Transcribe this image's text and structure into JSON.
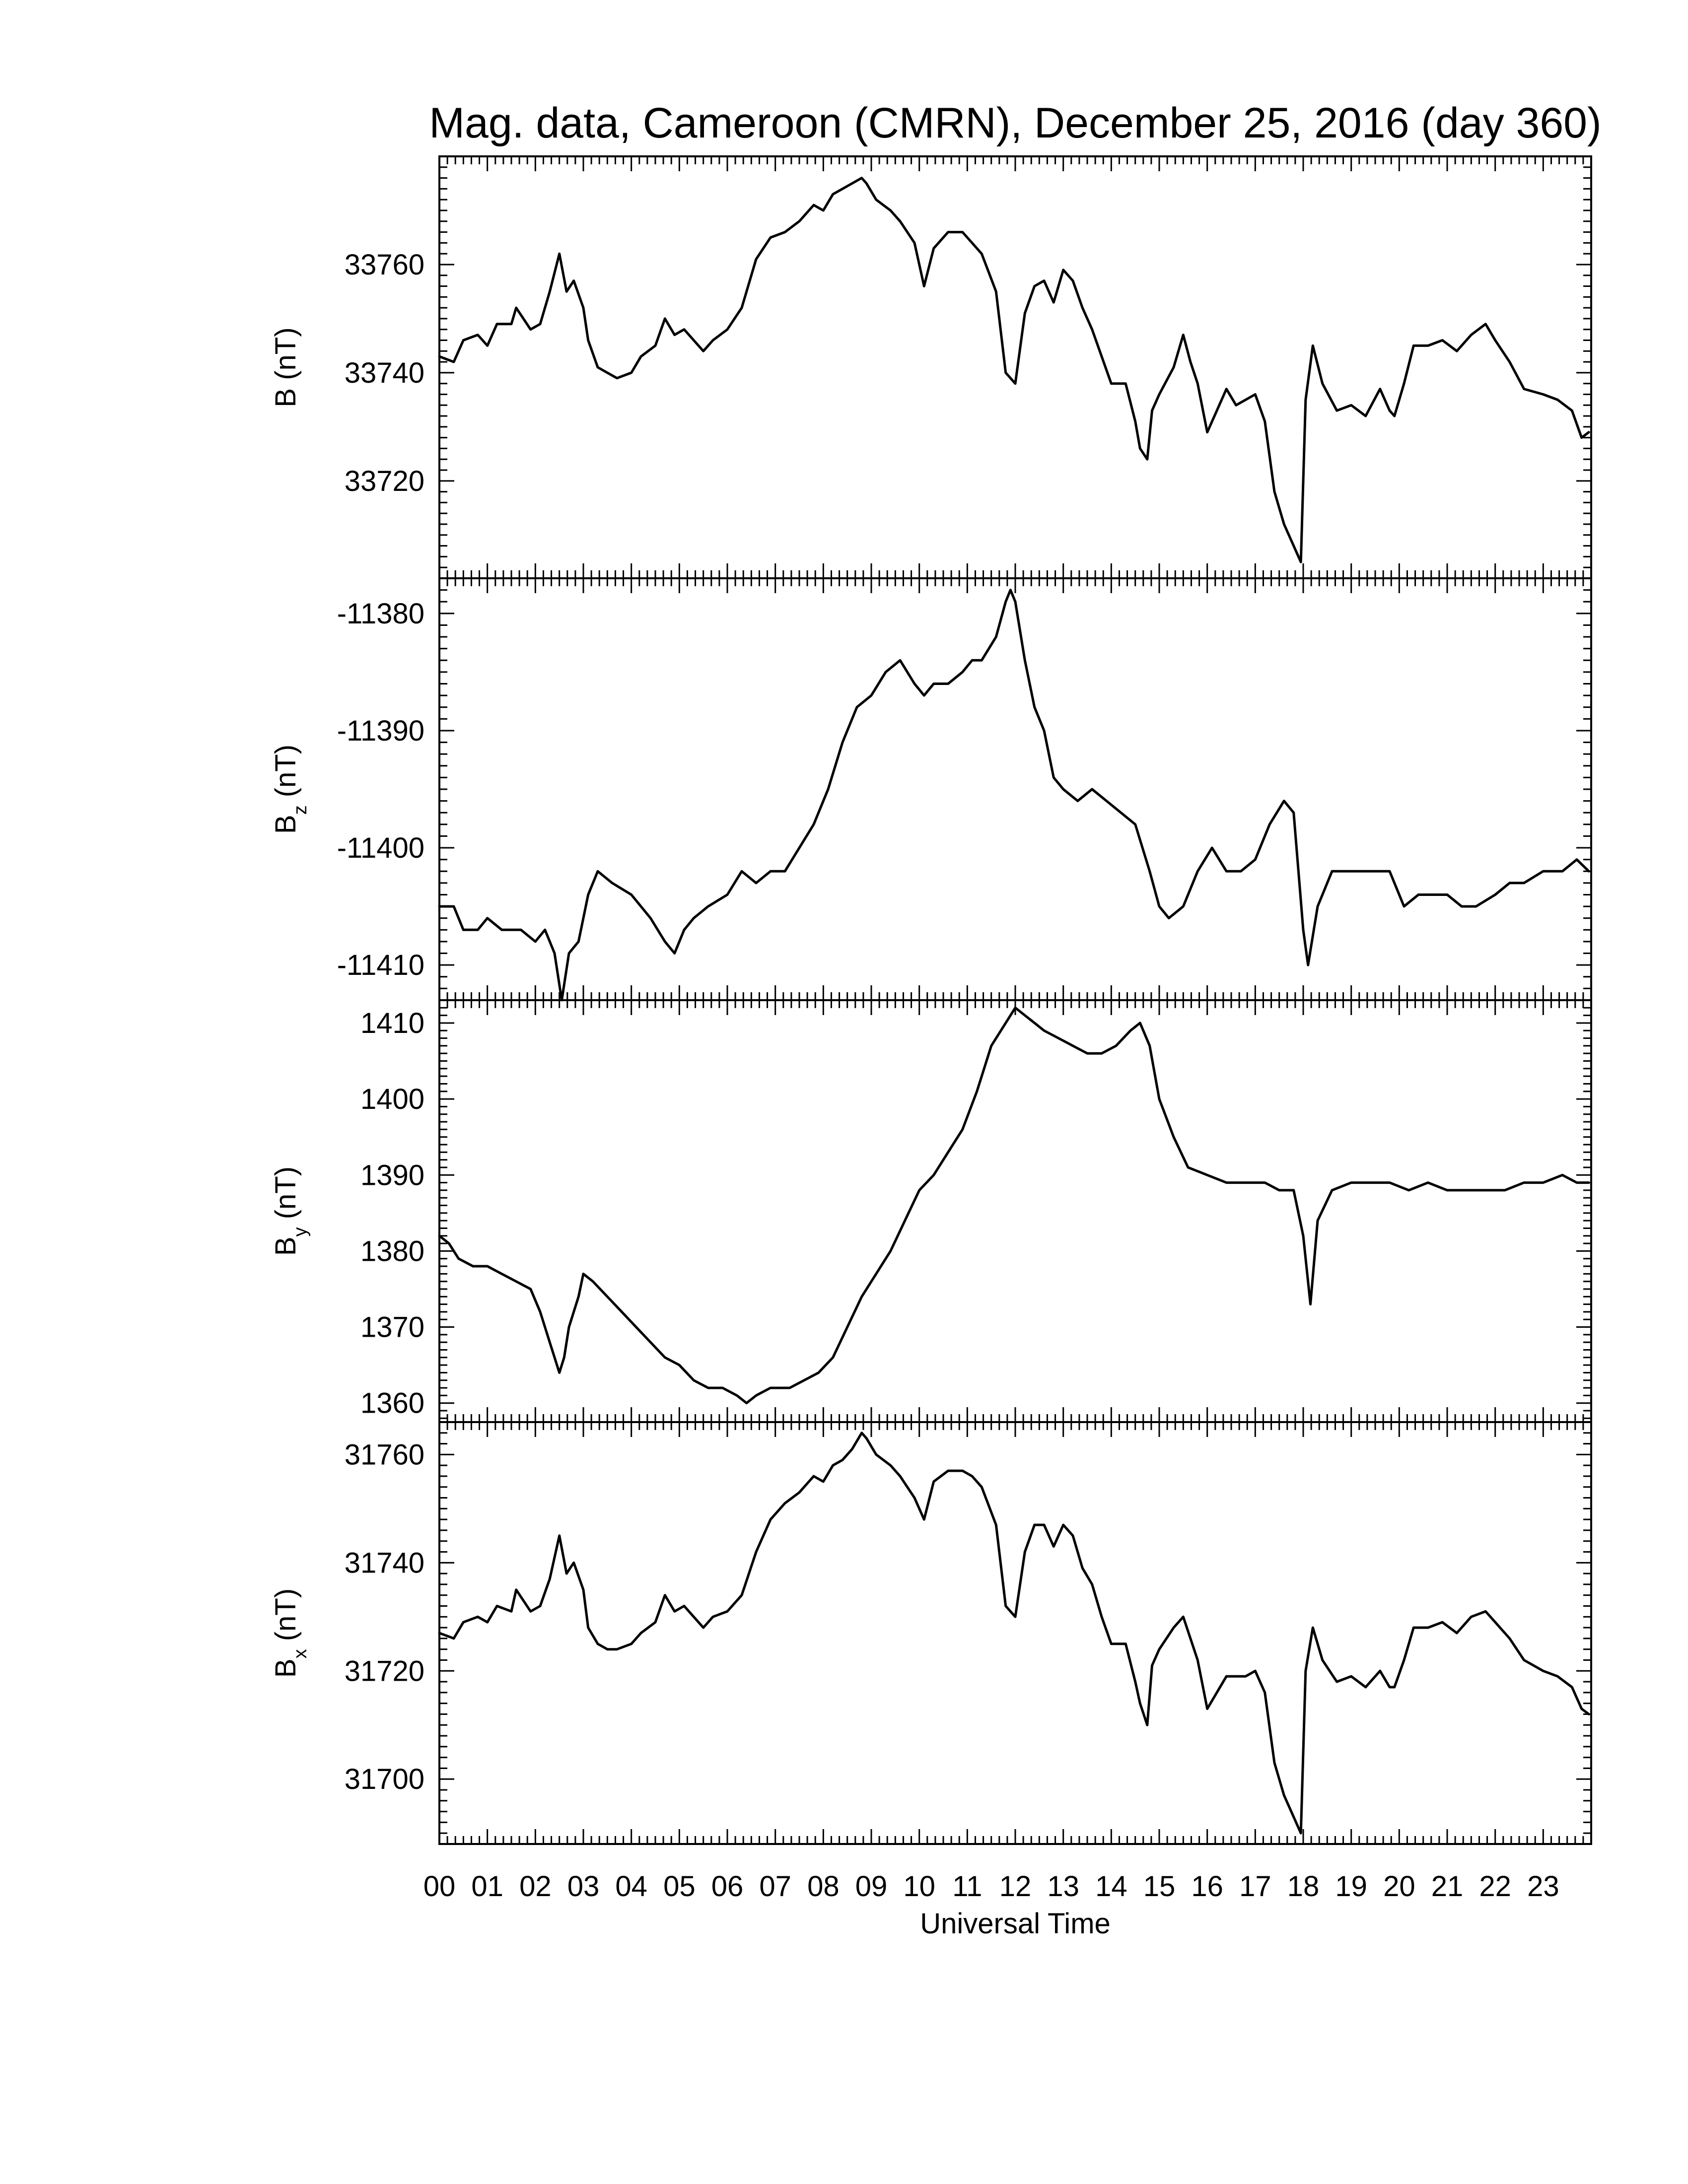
{
  "title": "Mag. data, Cameroon (CMRN), December 25, 2016 (day 360)",
  "xlabel": "Universal Time",
  "chart_data": [
    {
      "type": "line",
      "panel": "B",
      "ylabel": {
        "main": "B",
        "sub": "",
        "unit": " (nT)"
      },
      "yticks": [
        33720,
        33740,
        33760
      ],
      "ylim": [
        33702,
        33780
      ],
      "series": [
        {
          "x": [
            0,
            0.3,
            0.5,
            0.8,
            1.0,
            1.2,
            1.5,
            1.6,
            1.9,
            2.1,
            2.3,
            2.5,
            2.65,
            2.8,
            3.0,
            3.1,
            3.3,
            3.5,
            3.7,
            4.0,
            4.2,
            4.5,
            4.7,
            4.9,
            5.1,
            5.3,
            5.5,
            5.7,
            6.0,
            6.3,
            6.6,
            6.9,
            7.2,
            7.5,
            7.8,
            8.0,
            8.2,
            8.4,
            8.6,
            8.8,
            8.9,
            9.1,
            9.4,
            9.6,
            9.9,
            10.1,
            10.3,
            10.6,
            10.9,
            11.1,
            11.3,
            11.6,
            11.8,
            12.0,
            12.2,
            12.4,
            12.6,
            12.8,
            12.9,
            13.0,
            13.2,
            13.4,
            13.6,
            13.8,
            14.0,
            14.3,
            14.5,
            14.6,
            14.75,
            14.85,
            15.0,
            15.3,
            15.5,
            15.65,
            15.8,
            16.0,
            16.2,
            16.4,
            16.6,
            16.8,
            17.0,
            17.2,
            17.4,
            17.6,
            17.8,
            17.95,
            18.05,
            18.2,
            18.4,
            18.7,
            19.0,
            19.3,
            19.6,
            19.8,
            19.9,
            20.1,
            20.3,
            20.6,
            20.9,
            21.2,
            21.5,
            21.8,
            22.0,
            22.3,
            22.6,
            23.0,
            23.3,
            23.6,
            23.8,
            23.95
          ],
          "y": [
            33743,
            33742,
            33746,
            33747,
            33745,
            33749,
            33749,
            33752,
            33748,
            33749,
            33755,
            33762,
            33755,
            33757,
            33752,
            33746,
            33741,
            33740,
            33739,
            33740,
            33743,
            33745,
            33750,
            33747,
            33748,
            33746,
            33744,
            33746,
            33748,
            33752,
            33761,
            33765,
            33766,
            33768,
            33771,
            33770,
            33773,
            33774,
            33775,
            33776,
            33775,
            33772,
            33770,
            33768,
            33764,
            33756,
            33763,
            33766,
            33766,
            33764,
            33762,
            33755,
            33740,
            33738,
            33751,
            33756,
            33757,
            33753,
            33756,
            33759,
            33757,
            33752,
            33748,
            33743,
            33738,
            33738,
            33731,
            33726,
            33724,
            33733,
            33736,
            33741,
            33747,
            33742,
            33738,
            33729,
            33733,
            33737,
            33734,
            33735,
            33736,
            33731,
            33718,
            33712,
            33708,
            33705,
            33735,
            33745,
            33738,
            33733,
            33734,
            33732,
            33737,
            33733,
            33732,
            33738,
            33745,
            33745,
            33746,
            33744,
            33747,
            33749,
            33746,
            33742,
            33737,
            33736,
            33735,
            33733,
            33728,
            33729
          ]
        }
      ]
    },
    {
      "type": "line",
      "panel": "Bz",
      "ylabel": {
        "main": "B",
        "sub": "z",
        "unit": " (nT)"
      },
      "yticks": [
        -11380,
        -11390,
        -11400,
        -11410
      ],
      "ylim": [
        -11413,
        -11377
      ],
      "series": [
        {
          "x": [
            0,
            0.3,
            0.5,
            0.8,
            1.0,
            1.3,
            1.5,
            1.7,
            2.0,
            2.2,
            2.4,
            2.55,
            2.7,
            2.9,
            3.1,
            3.3,
            3.6,
            4.0,
            4.4,
            4.7,
            4.9,
            5.1,
            5.3,
            5.6,
            6.0,
            6.3,
            6.6,
            6.9,
            7.2,
            7.5,
            7.8,
            8.1,
            8.4,
            8.7,
            9.0,
            9.3,
            9.6,
            9.9,
            10.1,
            10.3,
            10.6,
            10.9,
            11.1,
            11.3,
            11.6,
            11.8,
            11.9,
            12.0,
            12.2,
            12.4,
            12.6,
            12.8,
            13.0,
            13.3,
            13.6,
            13.9,
            14.2,
            14.5,
            14.8,
            15.0,
            15.2,
            15.5,
            15.8,
            16.1,
            16.4,
            16.7,
            17.0,
            17.3,
            17.6,
            17.8,
            18.0,
            18.1,
            18.3,
            18.6,
            19.0,
            19.4,
            19.8,
            20.1,
            20.4,
            20.7,
            21.0,
            21.3,
            21.6,
            22.0,
            22.3,
            22.6,
            23.0,
            23.4,
            23.7,
            23.95
          ],
          "y": [
            -11405,
            -11405,
            -11407,
            -11407,
            -11406,
            -11407,
            -11407,
            -11407,
            -11408,
            -11407,
            -11409,
            -11413,
            -11409,
            -11408,
            -11404,
            -11402,
            -11403,
            -11404,
            -11406,
            -11408,
            -11409,
            -11407,
            -11406,
            -11405,
            -11404,
            -11402,
            -11403,
            -11402,
            -11402,
            -11400,
            -11398,
            -11395,
            -11391,
            -11388,
            -11387,
            -11385,
            -11384,
            -11386,
            -11387,
            -11386,
            -11386,
            -11385,
            -11384,
            -11384,
            -11382,
            -11379,
            -11378,
            -11379,
            -11384,
            -11388,
            -11390,
            -11394,
            -11395,
            -11396,
            -11395,
            -11396,
            -11397,
            -11398,
            -11402,
            -11405,
            -11406,
            -11405,
            -11402,
            -11400,
            -11402,
            -11402,
            -11401,
            -11398,
            -11396,
            -11397,
            -11407,
            -11410,
            -11405,
            -11402,
            -11402,
            -11402,
            -11402,
            -11405,
            -11404,
            -11404,
            -11404,
            -11405,
            -11405,
            -11404,
            -11403,
            -11403,
            -11402,
            -11402,
            -11401,
            -11402
          ]
        }
      ]
    },
    {
      "type": "line",
      "panel": "By",
      "ylabel": {
        "main": "B",
        "sub": "y",
        "unit": " (nT)"
      },
      "yticks": [
        1360,
        1370,
        1380,
        1390,
        1400,
        1410
      ],
      "ylim": [
        1357.5,
        1413
      ],
      "series": [
        {
          "x": [
            0,
            0.2,
            0.4,
            0.7,
            1.0,
            1.3,
            1.6,
            1.9,
            2.1,
            2.3,
            2.5,
            2.6,
            2.7,
            2.9,
            3.0,
            3.2,
            3.5,
            3.8,
            4.1,
            4.4,
            4.7,
            5.0,
            5.3,
            5.6,
            5.9,
            6.2,
            6.4,
            6.6,
            6.9,
            7.1,
            7.3,
            7.6,
            7.9,
            8.2,
            8.5,
            8.8,
            9.1,
            9.4,
            9.7,
            10.0,
            10.3,
            10.6,
            10.9,
            11.2,
            11.5,
            11.8,
            12.0,
            12.2,
            12.4,
            12.6,
            12.9,
            13.2,
            13.5,
            13.8,
            14.1,
            14.4,
            14.6,
            14.8,
            15.0,
            15.3,
            15.6,
            16.0,
            16.4,
            16.8,
            17.2,
            17.5,
            17.8,
            18.0,
            18.15,
            18.3,
            18.6,
            19.0,
            19.4,
            19.8,
            20.2,
            20.6,
            21.0,
            21.4,
            21.8,
            22.2,
            22.6,
            23.0,
            23.4,
            23.7,
            23.95
          ],
          "y": [
            1382,
            1381,
            1379,
            1378,
            1378,
            1377,
            1376,
            1375,
            1372,
            1368,
            1364,
            1366,
            1370,
            1374,
            1377,
            1376,
            1374,
            1372,
            1370,
            1368,
            1366,
            1365,
            1363,
            1362,
            1362,
            1361,
            1360,
            1361,
            1362,
            1362,
            1362,
            1363,
            1364,
            1366,
            1370,
            1374,
            1377,
            1380,
            1384,
            1388,
            1390,
            1393,
            1396,
            1401,
            1407,
            1410,
            1412,
            1411,
            1410,
            1409,
            1408,
            1407,
            1406,
            1406,
            1407,
            1409,
            1410,
            1407,
            1400,
            1395,
            1391,
            1390,
            1389,
            1389,
            1389,
            1388,
            1388,
            1382,
            1373,
            1384,
            1388,
            1389,
            1389,
            1389,
            1388,
            1389,
            1388,
            1388,
            1388,
            1388,
            1389,
            1389,
            1390,
            1389,
            1389
          ]
        }
      ]
    },
    {
      "type": "line",
      "panel": "Bx",
      "ylabel": {
        "main": "B",
        "sub": "x",
        "unit": " (nT)"
      },
      "yticks": [
        31700,
        31720,
        31740,
        31760
      ],
      "ylim": [
        31688,
        31766
      ],
      "series": [
        {
          "x": [
            0,
            0.3,
            0.5,
            0.8,
            1.0,
            1.2,
            1.5,
            1.6,
            1.9,
            2.1,
            2.3,
            2.5,
            2.65,
            2.8,
            3.0,
            3.1,
            3.3,
            3.5,
            3.7,
            4.0,
            4.2,
            4.5,
            4.7,
            4.9,
            5.1,
            5.3,
            5.5,
            5.7,
            6.0,
            6.3,
            6.6,
            6.9,
            7.2,
            7.5,
            7.8,
            8.0,
            8.2,
            8.4,
            8.6,
            8.8,
            8.9,
            9.1,
            9.4,
            9.6,
            9.9,
            10.1,
            10.3,
            10.6,
            10.9,
            11.1,
            11.3,
            11.6,
            11.8,
            12.0,
            12.2,
            12.4,
            12.6,
            12.8,
            12.9,
            13.0,
            13.2,
            13.4,
            13.6,
            13.8,
            14.0,
            14.3,
            14.5,
            14.6,
            14.75,
            14.85,
            15.0,
            15.3,
            15.5,
            15.65,
            15.8,
            16.0,
            16.2,
            16.4,
            16.6,
            16.8,
            17.0,
            17.2,
            17.4,
            17.6,
            17.8,
            17.95,
            18.05,
            18.2,
            18.4,
            18.7,
            19.0,
            19.3,
            19.6,
            19.8,
            19.9,
            20.1,
            20.3,
            20.6,
            20.9,
            21.2,
            21.5,
            21.8,
            22.0,
            22.3,
            22.6,
            23.0,
            23.3,
            23.6,
            23.8,
            23.95
          ],
          "y": [
            31727,
            31726,
            31729,
            31730,
            31729,
            31732,
            31731,
            31735,
            31731,
            31732,
            31737,
            31745,
            31738,
            31740,
            31735,
            31728,
            31725,
            31724,
            31724,
            31725,
            31727,
            31729,
            31734,
            31731,
            31732,
            31730,
            31728,
            31730,
            31731,
            31734,
            31742,
            31748,
            31751,
            31753,
            31756,
            31755,
            31758,
            31759,
            31761,
            31764,
            31763,
            31760,
            31758,
            31756,
            31752,
            31748,
            31755,
            31757,
            31757,
            31756,
            31754,
            31747,
            31732,
            31730,
            31742,
            31747,
            31747,
            31743,
            31745,
            31747,
            31745,
            31739,
            31736,
            31730,
            31725,
            31725,
            31718,
            31714,
            31710,
            31721,
            31724,
            31728,
            31730,
            31726,
            31722,
            31713,
            31716,
            31719,
            31719,
            31719,
            31720,
            31716,
            31703,
            31697,
            31693,
            31690,
            31720,
            31728,
            31722,
            31718,
            31719,
            31717,
            31720,
            31717,
            31717,
            31722,
            31728,
            31728,
            31729,
            31727,
            31730,
            31731,
            31729,
            31726,
            31722,
            31720,
            31719,
            31717,
            31713,
            31712
          ]
        }
      ]
    }
  ],
  "xticks": [
    "00",
    "01",
    "02",
    "03",
    "04",
    "05",
    "06",
    "07",
    "08",
    "09",
    "10",
    "11",
    "12",
    "13",
    "14",
    "15",
    "16",
    "17",
    "18",
    "19",
    "20",
    "21",
    "22",
    "23"
  ]
}
